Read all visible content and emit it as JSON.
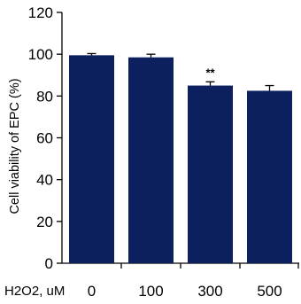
{
  "chart_data": {
    "type": "bar",
    "categories": [
      "0",
      "100",
      "300",
      "500"
    ],
    "values": [
      99.5,
      98.5,
      85,
      82.5
    ],
    "errors": [
      0.8,
      1.5,
      1.8,
      2.5
    ],
    "annotations": [
      "",
      "",
      "**",
      ""
    ],
    "ylabel": "Cell viability of EPC (%)",
    "xlabel_prefix": "H2O2, uM",
    "ylim": [
      0,
      120
    ],
    "yticks": [
      0,
      20,
      40,
      60,
      80,
      100,
      120
    ],
    "grid": false,
    "bar_color": "#0c1f5e"
  }
}
